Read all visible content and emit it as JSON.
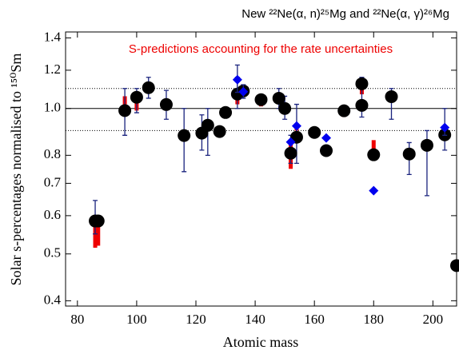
{
  "chart_data": {
    "type": "scatter",
    "title": "New ²²Ne(α, n)²⁵Mg and ²²Ne(α, γ)²⁶Mg",
    "annotation": "S-predictions accounting for the rate uncertainties",
    "annotation_color": "#ee0000",
    "x_label": "Atomic mass",
    "y_label": "Solar s-percentages normalised to ¹⁵⁰Sm",
    "xlim": [
      76,
      208
    ],
    "xticks": [
      80,
      100,
      120,
      140,
      160,
      180,
      200
    ],
    "ylim": [
      0.39,
      1.44
    ],
    "log_y": true,
    "yticks": [
      0.4,
      0.5,
      0.6,
      0.7,
      0.8,
      {
        "value": 1,
        "label": "1.0"
      },
      1.2,
      1.4
    ],
    "hlines": [
      {
        "value": 1.1,
        "style": "dotted"
      },
      {
        "value": 1,
        "style": "solid"
      },
      {
        "value": 0.9,
        "style": "dotted"
      }
    ],
    "ranges": {
      "color": "#ee0000",
      "x": [
        86,
        87,
        96,
        100,
        104,
        134,
        142,
        152,
        154,
        170,
        176,
        180
      ],
      "low": [
        0.515,
        0.52,
        1.02,
        0.99,
        1.08,
        1.02,
        1.01,
        0.75,
        0.9,
        0.96,
        1.07,
        0.8
      ],
      "high": [
        0.6,
        0.6,
        1.06,
        1.03,
        1.1,
        1.08,
        1.04,
        0.85,
        0.93,
        0.99,
        1.15,
        0.86
      ]
    },
    "series": [
      {
        "color": "#000000",
        "marker": "circle",
        "x": [
          86,
          87,
          96,
          100,
          104,
          110,
          116,
          122,
          124,
          128,
          130,
          134,
          136,
          142,
          148,
          150,
          152,
          154,
          160,
          164,
          170,
          176,
          176,
          180,
          186,
          192,
          198,
          204,
          208
        ],
        "values": [
          0.585,
          0.585,
          0.99,
          1.055,
          1.104,
          1.019,
          0.879,
          0.889,
          0.923,
          0.896,
          0.981,
          1.071,
          1.087,
          1.043,
          1.05,
          1.0,
          0.808,
          0.872,
          0.892,
          0.818,
          0.989,
          1.125,
          1.015,
          0.802,
          1.058,
          0.805,
          0.839,
          0.882,
          0.473
        ],
        "lower": [
          0.55,
          null,
          0.88,
          0.98,
          1.05,
          0.95,
          0.74,
          0.82,
          0.8,
          null,
          null,
          1.0,
          null,
          null,
          1.0,
          0.95,
          0.77,
          0.77,
          null,
          null,
          null,
          1.1,
          0.96,
          null,
          0.95,
          0.73,
          0.66,
          0.82,
          null
        ],
        "upper": [
          0.645,
          null,
          1.1,
          1.1,
          1.16,
          1.09,
          1.0,
          0.97,
          1.0,
          null,
          null,
          1.16,
          null,
          null,
          1.1,
          1.06,
          0.88,
          1.02,
          null,
          null,
          null,
          1.16,
          1.1,
          null,
          1.1,
          0.85,
          0.9,
          0.92,
          null
        ]
      },
      {
        "color": "#0000ee",
        "marker": "diamond",
        "x": [
          134,
          136,
          152,
          154,
          164,
          180,
          204
        ],
        "values": [
          1.147,
          1.083,
          0.852,
          0.92,
          0.869,
          0.676,
          0.913
        ],
        "lower": [
          1.08,
          1.05,
          null,
          null,
          null,
          null,
          0.88
        ],
        "upper": [
          1.23,
          1.12,
          null,
          null,
          null,
          null,
          1.0
        ]
      }
    ]
  }
}
